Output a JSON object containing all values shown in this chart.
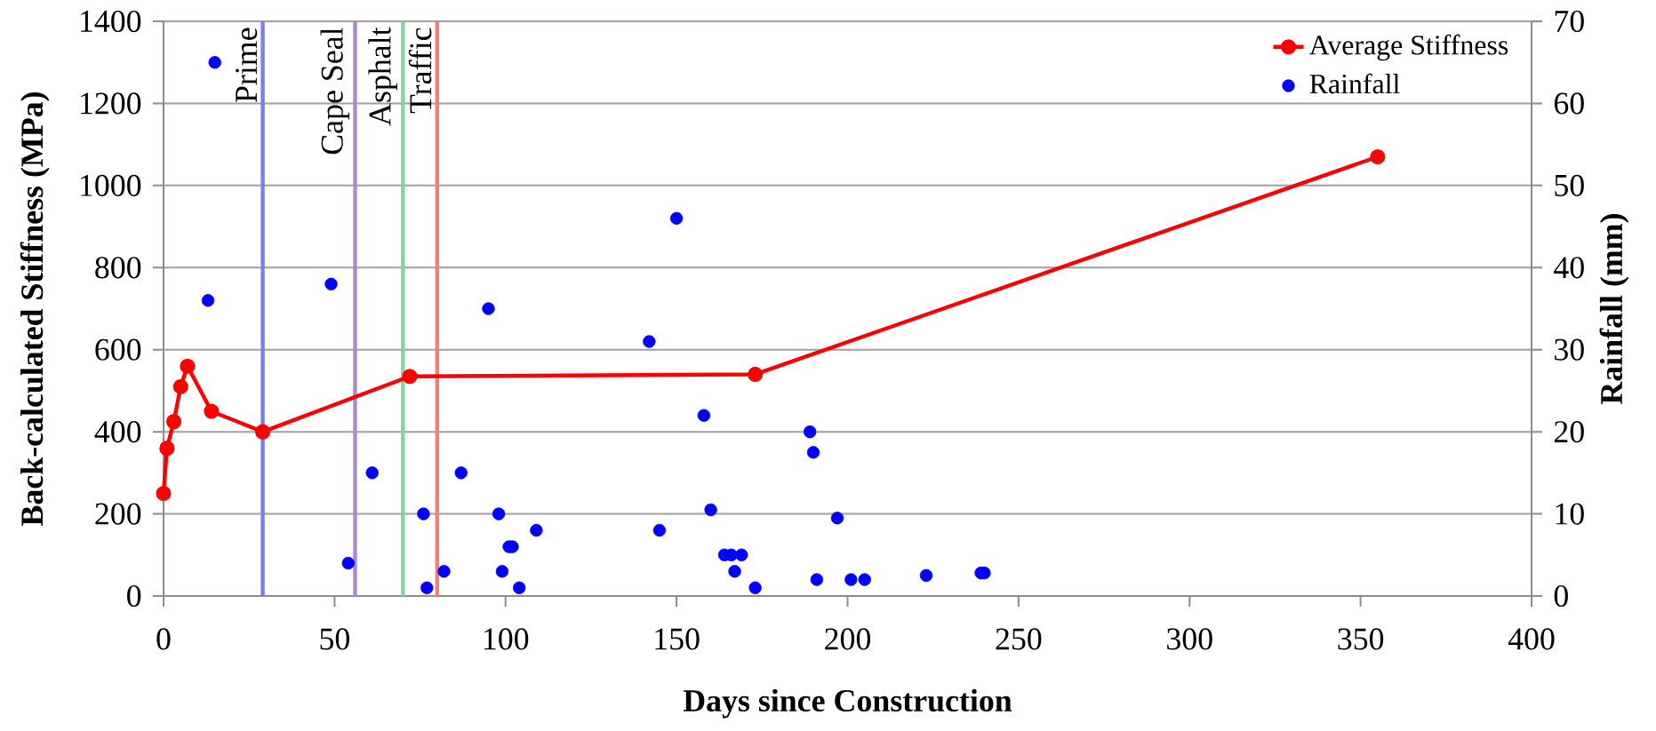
{
  "chart_data": {
    "type": "line",
    "xlabel": "Days since Construction",
    "ylabel": "Back-calculated Stiffness (MPa)",
    "y2label": "Rainfall (mm)",
    "xlim": [
      0,
      400
    ],
    "xticks": [
      0,
      50,
      100,
      150,
      200,
      250,
      300,
      350,
      400
    ],
    "ylim": [
      0,
      1400
    ],
    "yticks": [
      0,
      200,
      400,
      600,
      800,
      1000,
      1200,
      1400
    ],
    "y2lim": [
      0,
      70
    ],
    "y2ticks": [
      0,
      10,
      20,
      30,
      40,
      50,
      60,
      70
    ],
    "grid": "y",
    "legend": "top right",
    "ref_lines": [
      {
        "axis": "x",
        "value": 29,
        "label": "Prime",
        "color": "#7b7bf2"
      },
      {
        "axis": "x",
        "value": 56,
        "label": "Cape Seal",
        "color": "#a88bd0"
      },
      {
        "axis": "x",
        "value": 70,
        "label": "Asphalt",
        "color": "#80d6a2"
      },
      {
        "axis": "x",
        "value": 80,
        "label": "Traffic",
        "color": "#f47c7c"
      }
    ],
    "series": [
      {
        "name": "Average Stiffness",
        "color": "#ff0000",
        "marker": "circle",
        "x": [
          0,
          1,
          3,
          5,
          7,
          14,
          29,
          72,
          173,
          355
        ],
        "values": [
          250,
          360,
          425,
          510,
          560,
          450,
          400,
          535,
          540,
          1070
        ]
      },
      {
        "name": "Rainfall",
        "type": "scatter",
        "color": "#0000ff",
        "marker": "circle",
        "axis": "y2",
        "x": [
          15,
          13,
          49,
          54,
          61,
          76,
          77,
          82,
          87,
          95,
          98,
          99,
          101,
          102,
          104,
          109,
          142,
          145,
          150,
          158,
          160,
          164,
          166,
          167,
          169,
          173,
          189,
          190,
          191,
          197,
          201,
          205,
          223,
          239,
          240
        ],
        "values": [
          65,
          36,
          38,
          4,
          15,
          10,
          1,
          3,
          15,
          35,
          10,
          3,
          6,
          6,
          1,
          8,
          31,
          8,
          46,
          22,
          10.5,
          5,
          5,
          3,
          5,
          1,
          20,
          17.5,
          2,
          9.5,
          2,
          2,
          2.5,
          2.8,
          2.8
        ]
      }
    ]
  }
}
